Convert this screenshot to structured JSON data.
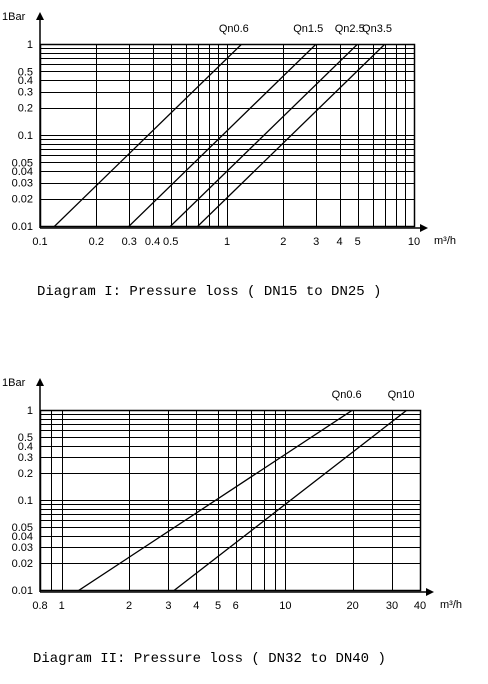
{
  "chart_data": [
    {
      "type": "line",
      "title": "Diagram I: Pressure loss ( DN15 to DN25 )",
      "ylabel": "1Bar",
      "xunit": "m³/h",
      "xscale": "log",
      "yscale": "log",
      "xlim": [
        0.1,
        10
      ],
      "ylim": [
        0.01,
        1
      ],
      "xticks": [
        0.1,
        0.2,
        0.3,
        0.4,
        0.5,
        1,
        2,
        3,
        4,
        5,
        10
      ],
      "xtick_labels": [
        "0.1",
        "0.2",
        "0.3",
        "0.4",
        "0.5",
        "1",
        "2",
        "3",
        "4",
        "5",
        "10"
      ],
      "yticks": [
        1,
        0.5,
        0.4,
        0.3,
        0.2,
        0.1,
        0.05,
        0.04,
        0.03,
        0.02,
        0.01
      ],
      "ytick_labels": [
        "1",
        "0.5",
        "0.4",
        "0.3",
        "0.2",
        "0.1",
        "0.05",
        "0.04",
        "0.03",
        "0.02",
        "0.01"
      ],
      "grid": true,
      "series": [
        {
          "name": "Qn0.6",
          "x": [
            0.12,
            1.2
          ],
          "y": [
            0.01,
            1
          ]
        },
        {
          "name": "Qn1.5",
          "x": [
            0.3,
            3
          ],
          "y": [
            0.01,
            1
          ]
        },
        {
          "name": "Qn2.5",
          "x": [
            0.5,
            5
          ],
          "y": [
            0.01,
            1
          ]
        },
        {
          "name": "Qn3.5",
          "x": [
            0.7,
            7
          ],
          "y": [
            0.01,
            1
          ]
        }
      ]
    },
    {
      "type": "line",
      "title": "Diagram II: Pressure loss ( DN32 to DN40 )",
      "ylabel": "1Bar",
      "xunit": "m³/h",
      "xscale": "log",
      "yscale": "log",
      "xlim": [
        0.8,
        40
      ],
      "ylim": [
        0.01,
        1
      ],
      "xticks": [
        0.8,
        1,
        2,
        3,
        4,
        5,
        6,
        10,
        20,
        30,
        40
      ],
      "xtick_labels": [
        "0.8",
        "1",
        "2",
        "3",
        "4",
        "5",
        "6",
        "10",
        "20",
        "30",
        "40"
      ],
      "yticks": [
        1,
        0.5,
        0.4,
        0.3,
        0.2,
        0.1,
        0.05,
        0.04,
        0.03,
        0.02,
        0.01
      ],
      "ytick_labels": [
        "1",
        "0.5",
        "0.4",
        "0.3",
        "0.2",
        "0.1",
        "0.05",
        "0.04",
        "0.03",
        "0.02",
        "0.01"
      ],
      "grid": true,
      "series": [
        {
          "name": "Qn0.6",
          "x": [
            1.2,
            20
          ],
          "y": [
            0.01,
            1
          ]
        },
        {
          "name": "Qn10",
          "x": [
            3.2,
            35
          ],
          "y": [
            0.01,
            1
          ]
        }
      ]
    }
  ]
}
